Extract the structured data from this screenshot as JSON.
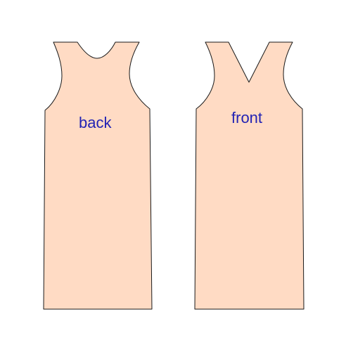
{
  "colors": {
    "fabric": "#ffdbc4",
    "outline": "#1a1a1a",
    "label": "#2323b4",
    "background": "#ffffff"
  },
  "panels": {
    "back": {
      "label": "back"
    },
    "front": {
      "label": "front"
    }
  }
}
